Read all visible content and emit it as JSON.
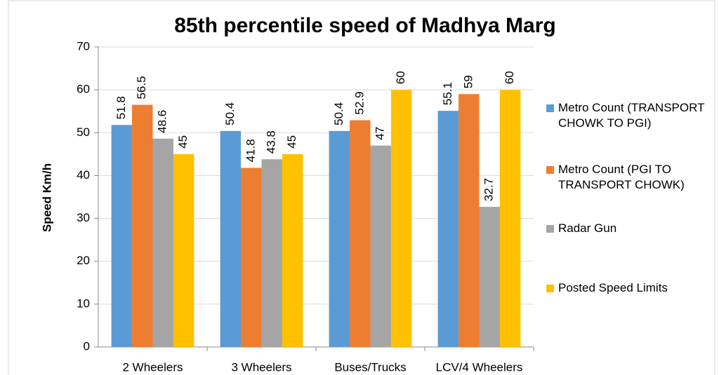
{
  "chart_data": {
    "type": "bar",
    "title": "85th percentile speed of Madhya Marg",
    "y_label": "Speed Km/h",
    "categories": [
      "2 Wheelers",
      "3 Wheelers",
      "Buses/Trucks",
      "LCV/4 Wheelers"
    ],
    "series": [
      {
        "name": "Metro Count (TRANSPORT CHOWK TO PGI)",
        "color": "#5b9bd5",
        "values": [
          51.8,
          50.4,
          50.4,
          55.1
        ]
      },
      {
        "name": "Metro Count (PGI TO TRANSPORT CHOWK)",
        "color": "#ed7d31",
        "values": [
          56.5,
          41.8,
          52.9,
          59
        ]
      },
      {
        "name": "Radar Gun",
        "color": "#a5a5a5",
        "values": [
          48.6,
          43.8,
          47,
          32.7
        ]
      },
      {
        "name": "Posted Speed Limits",
        "color": "#ffc000",
        "values": [
          45,
          45,
          60,
          60
        ]
      }
    ],
    "ylim": [
      0,
      70
    ],
    "yticks": [
      0,
      10,
      20,
      30,
      40,
      50,
      60,
      70
    ],
    "grid": true,
    "legend": "right"
  }
}
